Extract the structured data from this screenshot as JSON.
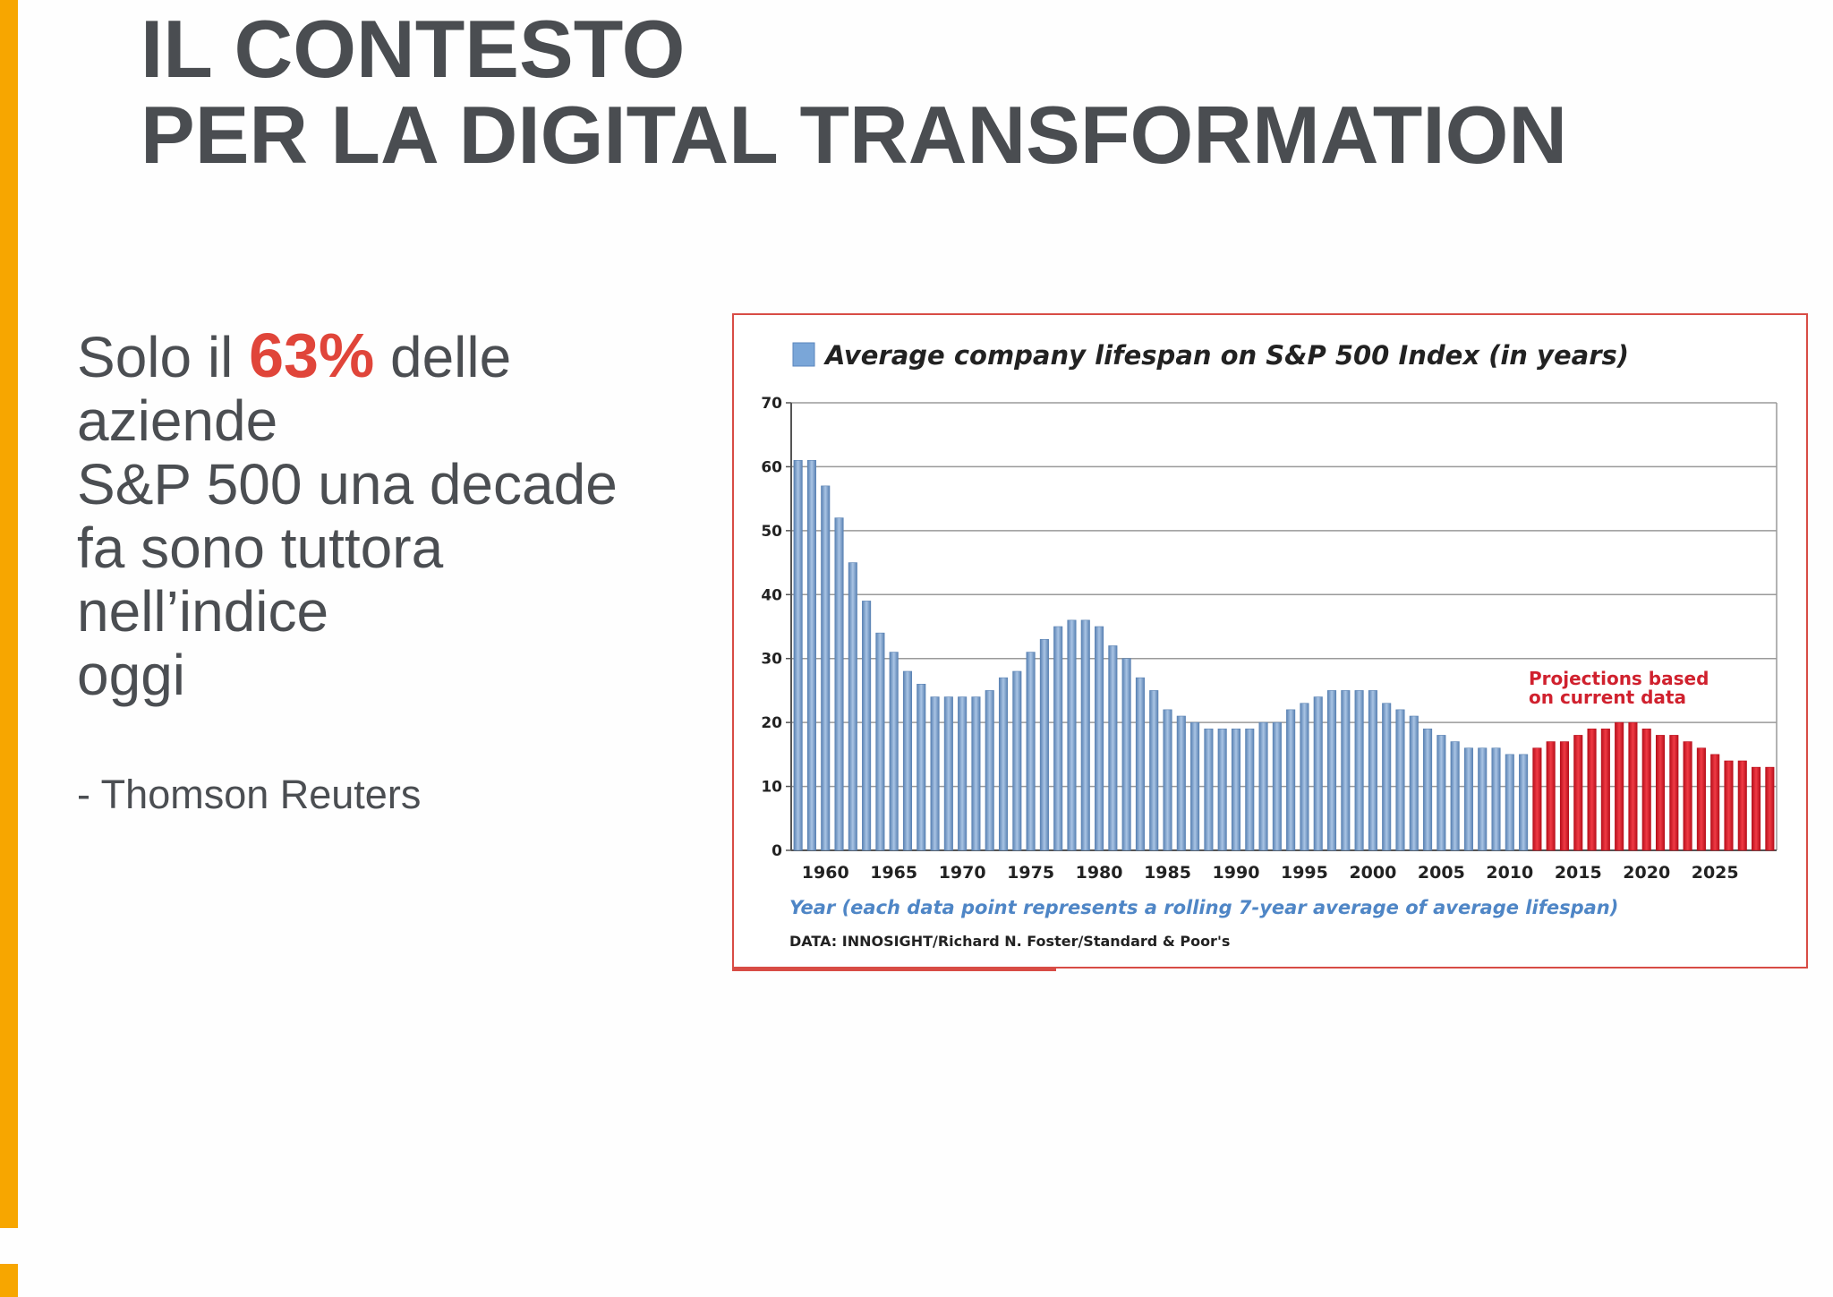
{
  "slide": {
    "title_line1": "IL CONTESTO",
    "title_line2": "PER LA DIGITAL TRANSFORMATION",
    "quote": {
      "prefix": "Solo il",
      "percent": "63%",
      "suffix": "delle",
      "line2": "aziende",
      "line3": "S&P 500 una decade",
      "line4": "fa sono tuttora",
      "line5": "nell’indice",
      "line6": "oggi"
    },
    "source": "- Thomson Reuters",
    "colors": {
      "accent": "#f7a600",
      "highlight": "#e0453a",
      "title": "#4a4d51"
    }
  },
  "chart_data": {
    "type": "bar",
    "title": "Average company lifespan on S&P 500 Index (in years)",
    "xlabel": "Year (each data point represents a rolling 7-year average of average lifespan)",
    "ylabel": "",
    "ylim": [
      0,
      70
    ],
    "yticks": [
      "0",
      "10",
      "20",
      "30",
      "40",
      "50",
      "60",
      "70"
    ],
    "xticks": [
      "1960",
      "1965",
      "1970",
      "1975",
      "1980",
      "1985",
      "1990",
      "1995",
      "2000",
      "2005",
      "2010",
      "2015",
      "2020",
      "2025"
    ],
    "grid": true,
    "legend": "top-left",
    "annotation": "Projections based on current data",
    "note": "DATA: INNOSIGHT/Richard N. Foster/Standard & Poor's",
    "colors": {
      "historical": "#7da3cf",
      "projection": "#e0242f",
      "annotation": "#d0212e",
      "xlabel": "#4f86c6"
    },
    "series": [
      {
        "name": "Average company lifespan on S&P 500 Index (in years)",
        "x": [
          1958,
          1959,
          1960,
          1961,
          1962,
          1963,
          1964,
          1965,
          1966,
          1967,
          1968,
          1969,
          1970,
          1971,
          1972,
          1973,
          1974,
          1975,
          1976,
          1977,
          1978,
          1979,
          1980,
          1981,
          1982,
          1983,
          1984,
          1985,
          1986,
          1987,
          1988,
          1989,
          1990,
          1991,
          1992,
          1993,
          1994,
          1995,
          1996,
          1997,
          1998,
          1999,
          2000,
          2001,
          2002,
          2003,
          2004,
          2005,
          2006,
          2007,
          2008,
          2009,
          2010,
          2011
        ],
        "values": [
          61,
          61,
          57,
          52,
          45,
          39,
          34,
          31,
          28,
          26,
          24,
          24,
          24,
          24,
          25,
          27,
          28,
          31,
          33,
          35,
          36,
          36,
          35,
          32,
          30,
          27,
          25,
          22,
          21,
          20,
          19,
          19,
          19,
          19,
          20,
          20,
          22,
          23,
          24,
          25,
          25,
          25,
          25,
          23,
          22,
          21,
          19,
          18,
          17,
          16,
          16,
          16,
          15,
          15
        ]
      },
      {
        "name": "Projections based on current data",
        "x": [
          2012,
          2013,
          2014,
          2015,
          2016,
          2017,
          2018,
          2019,
          2020,
          2021,
          2022,
          2023,
          2024,
          2025,
          2026,
          2027,
          2028,
          2029
        ],
        "values": [
          16,
          17,
          17,
          18,
          19,
          19,
          20,
          20,
          19,
          18,
          18,
          17,
          16,
          15,
          14,
          14,
          13,
          13
        ]
      }
    ]
  }
}
